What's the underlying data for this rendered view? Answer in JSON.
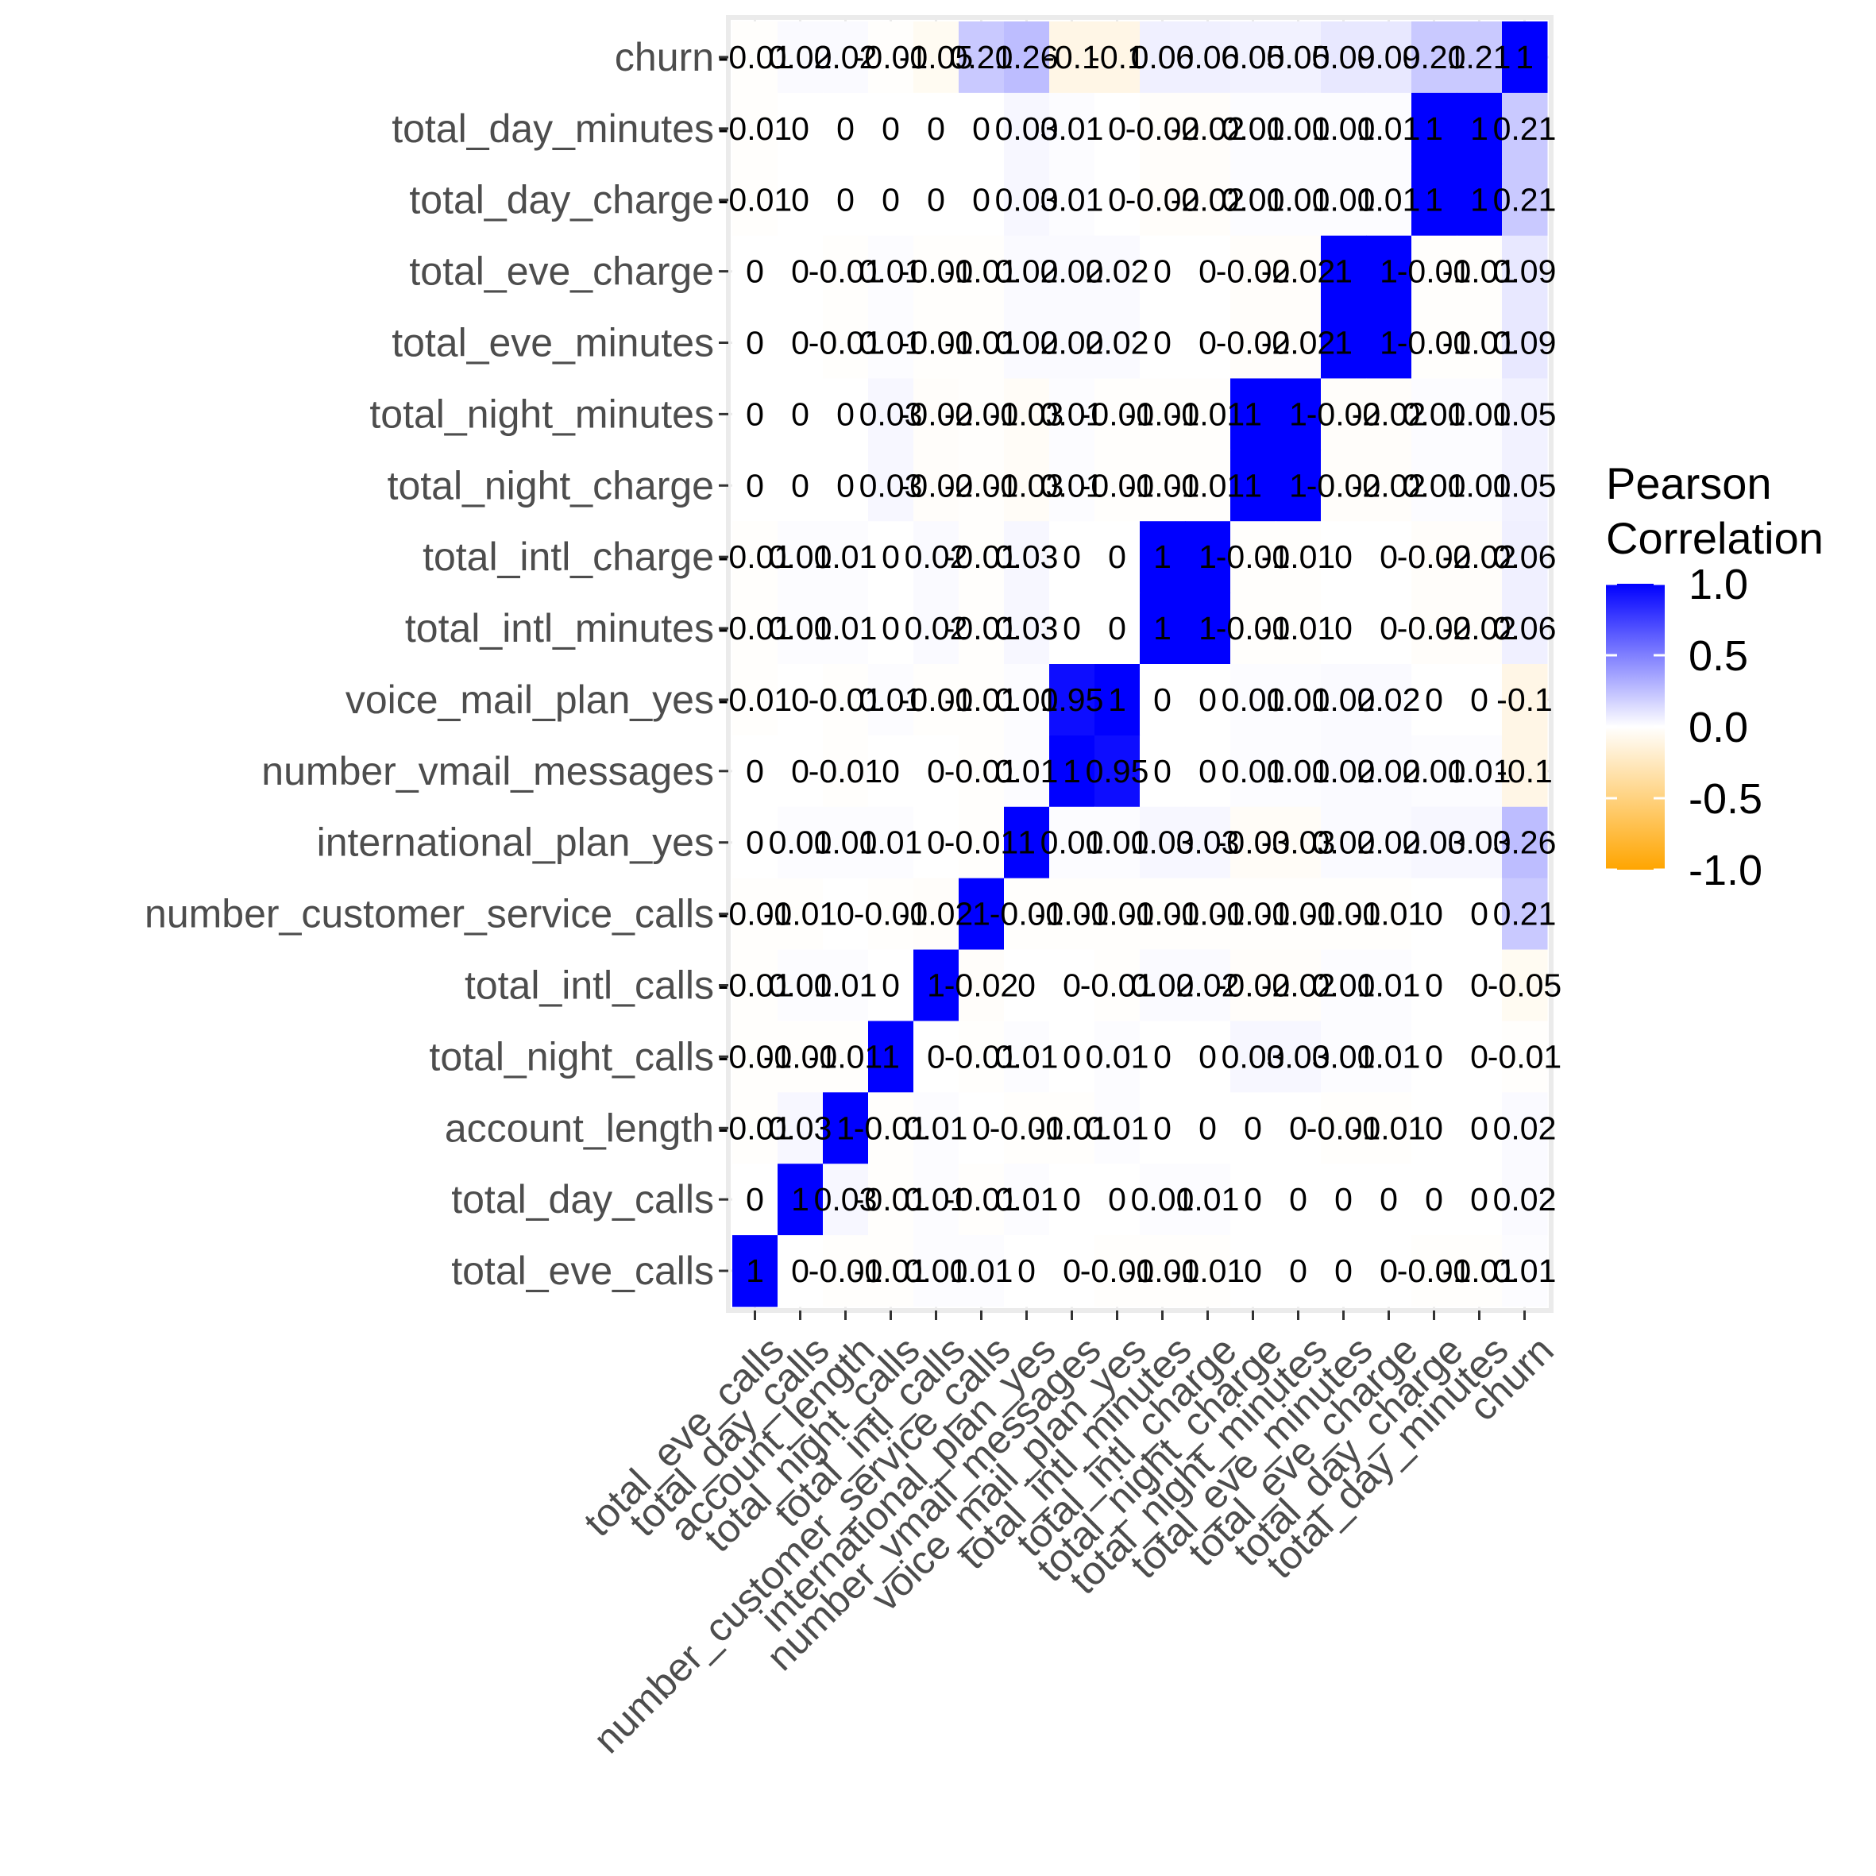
{
  "chart_data": {
    "type": "heatmap",
    "title": "",
    "xlabel": "",
    "ylabel": "",
    "x_categories": [
      "total_eve_calls",
      "total_day_calls",
      "account_length",
      "total_night_calls",
      "total_intl_calls",
      "number_customer_service_calls",
      "international_plan_yes",
      "number_vmail_messages",
      "voice_mail_plan_yes",
      "total_intl_minutes",
      "total_intl_charge",
      "total_night_charge",
      "total_night_minutes",
      "total_eve_minutes",
      "total_eve_charge",
      "total_day_charge",
      "total_day_minutes",
      "churn"
    ],
    "y_categories_top_to_bottom": [
      "churn",
      "total_day_minutes",
      "total_day_charge",
      "total_eve_charge",
      "total_eve_minutes",
      "total_night_minutes",
      "total_night_charge",
      "total_intl_charge",
      "total_intl_minutes",
      "voice_mail_plan_yes",
      "number_vmail_messages",
      "international_plan_yes",
      "number_customer_service_calls",
      "total_intl_calls",
      "total_night_calls",
      "account_length",
      "total_day_calls",
      "total_eve_calls"
    ],
    "matrix_rows_top_to_bottom": [
      [
        -0.01,
        0.02,
        0.02,
        -0.01,
        -0.05,
        0.21,
        0.26,
        -0.1,
        -0.1,
        0.06,
        0.06,
        0.05,
        0.05,
        0.09,
        0.09,
        0.21,
        0.21,
        1
      ],
      [
        -0.01,
        0,
        0,
        0,
        0,
        0,
        0.03,
        0.01,
        0,
        -0.02,
        -0.02,
        0.01,
        0.01,
        0.01,
        0.01,
        1,
        1,
        0.21
      ],
      [
        -0.01,
        0,
        0,
        0,
        0,
        0,
        0.03,
        0.01,
        0,
        -0.02,
        -0.02,
        0.01,
        0.01,
        0.01,
        0.01,
        1,
        1,
        0.21
      ],
      [
        0,
        0,
        -0.01,
        0.01,
        -0.01,
        -0.01,
        0.02,
        0.02,
        0.02,
        0,
        0,
        -0.02,
        -0.02,
        1,
        1,
        -0.01,
        -0.01,
        0.09
      ],
      [
        0,
        0,
        -0.01,
        0.01,
        -0.01,
        -0.01,
        0.02,
        0.02,
        0.02,
        0,
        0,
        -0.02,
        -0.02,
        1,
        1,
        -0.01,
        -0.01,
        0.09
      ],
      [
        0,
        0,
        0,
        0.03,
        -0.02,
        -0.01,
        -0.03,
        0.01,
        -0.01,
        -0.01,
        -0.01,
        1,
        1,
        -0.02,
        -0.02,
        0.01,
        0.01,
        0.05
      ],
      [
        0,
        0,
        0,
        0.03,
        -0.02,
        -0.01,
        -0.03,
        0.01,
        -0.01,
        -0.01,
        -0.01,
        1,
        1,
        -0.02,
        -0.02,
        0.01,
        0.01,
        0.05
      ],
      [
        -0.01,
        0.01,
        0.01,
        0,
        0.02,
        -0.01,
        0.03,
        0,
        0,
        1,
        1,
        -0.01,
        -0.01,
        0,
        0,
        -0.02,
        -0.02,
        0.06
      ],
      [
        -0.01,
        0.01,
        0.01,
        0,
        0.02,
        -0.01,
        0.03,
        0,
        0,
        1,
        1,
        -0.01,
        -0.01,
        0,
        0,
        -0.02,
        -0.02,
        0.06
      ],
      [
        -0.01,
        0,
        -0.01,
        0.01,
        -0.01,
        -0.01,
        0.01,
        0.95,
        1,
        0,
        0,
        0.01,
        0.01,
        0.02,
        0.02,
        0,
        0,
        -0.1
      ],
      [
        0,
        0,
        -0.01,
        0,
        0,
        -0.01,
        0.01,
        1,
        0.95,
        0,
        0,
        0.01,
        0.01,
        0.02,
        0.02,
        0.01,
        0.01,
        -0.1
      ],
      [
        0,
        0.01,
        0.01,
        0.01,
        0,
        -0.01,
        1,
        0.01,
        0.01,
        0.03,
        0.03,
        -0.03,
        -0.03,
        0.02,
        0.02,
        0.03,
        0.03,
        0.26
      ],
      [
        -0.01,
        -0.01,
        0,
        -0.01,
        -0.02,
        1,
        -0.01,
        -0.01,
        -0.01,
        -0.01,
        -0.01,
        -0.01,
        -0.01,
        -0.01,
        -0.01,
        0,
        0,
        0.21
      ],
      [
        -0.01,
        0.01,
        0.01,
        0,
        1,
        -0.02,
        0,
        0,
        -0.01,
        0.02,
        0.02,
        -0.02,
        -0.02,
        0.01,
        0.01,
        0,
        0,
        -0.05
      ],
      [
        -0.01,
        -0.01,
        -0.01,
        1,
        0,
        -0.01,
        0.01,
        0,
        0.01,
        0,
        0,
        0.03,
        0.03,
        0.01,
        0.01,
        0,
        0,
        -0.01
      ],
      [
        -0.01,
        0.03,
        1,
        -0.01,
        0.01,
        0,
        -0.01,
        -0.01,
        0.01,
        0,
        0,
        0,
        0,
        -0.01,
        -0.01,
        0,
        0,
        0.02
      ],
      [
        0,
        1,
        0.03,
        -0.01,
        0.01,
        -0.01,
        0.01,
        0,
        0,
        0.01,
        0.01,
        0,
        0,
        0,
        0,
        0,
        0,
        0.02
      ],
      [
        1,
        0,
        -0.01,
        -0.01,
        0.01,
        0.01,
        0,
        0,
        -0.01,
        -0.01,
        -0.01,
        0,
        0,
        0,
        0,
        -0.01,
        -0.01,
        0.01
      ]
    ],
    "legend": {
      "title_lines": [
        "Pearson",
        "Correlation"
      ],
      "ticks": [
        1.0,
        0.5,
        0.0,
        -0.5,
        -1.0
      ],
      "tick_labels": [
        "1.0",
        "0.5",
        "0.0",
        "-0.5",
        "-1.0"
      ],
      "limits": [
        -1,
        1
      ],
      "placement": "right"
    },
    "colors": {
      "high": "#0000ff",
      "mid": "#ffffff",
      "low": "#ffa500",
      "panel_grid": "#ebebeb",
      "tick_color": "#333333",
      "axis_text": "#4d4d4d"
    },
    "grid": true
  }
}
